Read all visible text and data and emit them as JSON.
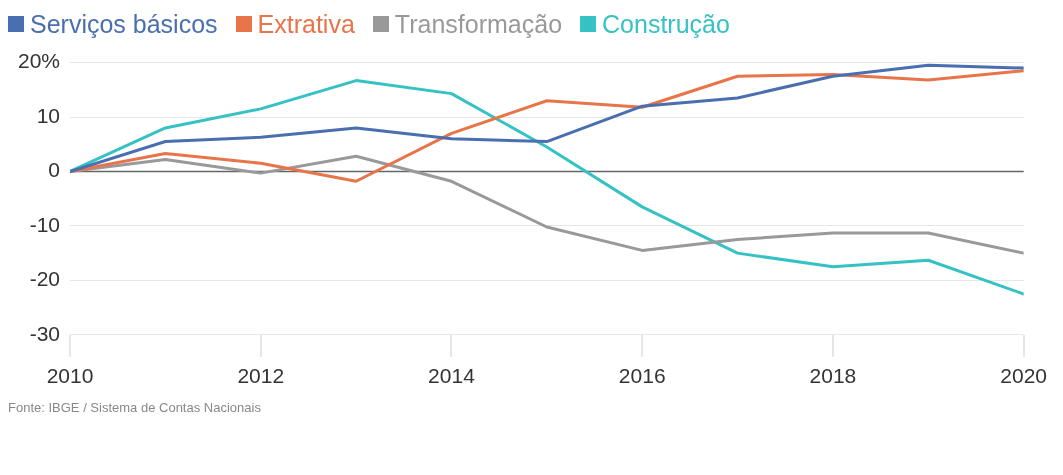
{
  "chart_data": {
    "type": "line",
    "x": [
      2010,
      2011,
      2012,
      2013,
      2014,
      2015,
      2016,
      2017,
      2018,
      2019,
      2020
    ],
    "series": [
      {
        "name": "Serviços básicos",
        "color": "#4a6fb0",
        "values": [
          0,
          5.5,
          6.3,
          8,
          6,
          5.5,
          12,
          13.5,
          17.5,
          19.5,
          19
        ]
      },
      {
        "name": "Extrativa",
        "color": "#e8744a",
        "values": [
          0,
          3.3,
          1.5,
          -1.8,
          7,
          13,
          11.8,
          17.5,
          17.8,
          16.8,
          18.5
        ]
      },
      {
        "name": "Transformação",
        "color": "#999999",
        "values": [
          0,
          2.2,
          -0.3,
          2.8,
          -1.8,
          -10.2,
          -14.5,
          -12.5,
          -11.3,
          -11.3,
          -15
        ]
      },
      {
        "name": "Construção",
        "color": "#36c2c4",
        "values": [
          0,
          8,
          11.5,
          16.7,
          14.3,
          4.5,
          -6.5,
          -15,
          -17.5,
          -16.3,
          -22.5
        ]
      }
    ],
    "xlim": [
      2010,
      2020
    ],
    "xticks": [
      2010,
      2012,
      2014,
      2016,
      2018,
      2020
    ],
    "ylim": [
      -30,
      20
    ],
    "yticks": [
      -30,
      -20,
      -10,
      0,
      10,
      {
        "value": 20,
        "label": "20%"
      }
    ],
    "grid": "y",
    "legend": "top left",
    "marker": "none",
    "line_style": "solid",
    "ref_lines": [
      {
        "axis": "y",
        "value": 0,
        "color": "#666666"
      }
    ],
    "annotations": [
      "Fonte: IBGE / Sistema de Contas Nacionais"
    ]
  }
}
